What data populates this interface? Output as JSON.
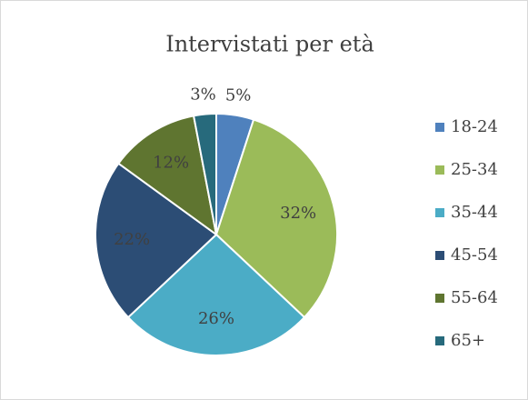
{
  "chart_data": {
    "type": "pie",
    "title": "Intervistati per età",
    "categories": [
      "18-24",
      "25-34",
      "35-44",
      "45-54",
      "55-64",
      "65+"
    ],
    "values": [
      5,
      32,
      26,
      22,
      12,
      3
    ],
    "value_labels": [
      "5%",
      "32%",
      "26%",
      "22%",
      "12%",
      "3%"
    ],
    "colors": [
      "#4f81bd",
      "#9bbb59",
      "#4bacc6",
      "#2c4d75",
      "#5f7530",
      "#276a7c"
    ],
    "legend": "right"
  }
}
